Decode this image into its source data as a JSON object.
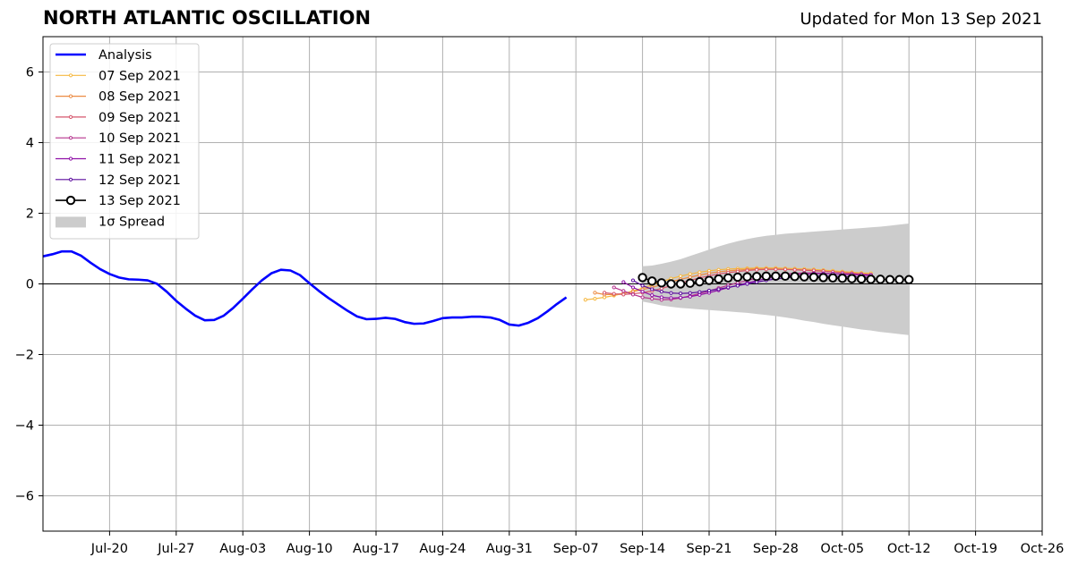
{
  "title": "NORTH ATLANTIC OSCILLATION",
  "subtitle": "Updated for Mon 13 Sep 2021",
  "chart_data": {
    "type": "line",
    "xlim": [
      "2021-07-13",
      "2021-10-26"
    ],
    "ylim": [
      -7,
      7
    ],
    "grid": true,
    "x_ticks": [
      "2021-07-20",
      "2021-07-27",
      "2021-08-03",
      "2021-08-10",
      "2021-08-17",
      "2021-08-24",
      "2021-08-31",
      "2021-09-07",
      "2021-09-14",
      "2021-09-21",
      "2021-09-28",
      "2021-10-05",
      "2021-10-12",
      "2021-10-19",
      "2021-10-26"
    ],
    "x_tick_labels": [
      "Jul-20",
      "Jul-27",
      "Aug-03",
      "Aug-10",
      "Aug-17",
      "Aug-24",
      "Aug-31",
      "Sep-07",
      "Sep-14",
      "Sep-21",
      "Sep-28",
      "Oct-05",
      "Oct-12",
      "Oct-19",
      "Oct-26"
    ],
    "y_ticks": [
      -6,
      -4,
      -2,
      0,
      2,
      4,
      6
    ],
    "y_tick_labels": [
      "−6",
      "−4",
      "−2",
      "0",
      "2",
      "4",
      "6"
    ],
    "legend_position": "upper-left",
    "legend": {
      "analysis": "Analysis",
      "spread": "1σ Spread"
    },
    "analysis": {
      "name": "Analysis",
      "color": "#0000ff",
      "start_date": "2021-07-13",
      "values": [
        0.78,
        0.84,
        0.92,
        0.92,
        0.8,
        0.6,
        0.42,
        0.28,
        0.18,
        0.13,
        0.12,
        0.1,
        0.0,
        -0.22,
        -0.48,
        -0.7,
        -0.9,
        -1.03,
        -1.02,
        -0.9,
        -0.68,
        -0.42,
        -0.15,
        0.1,
        0.3,
        0.4,
        0.38,
        0.25,
        0.02,
        -0.2,
        -0.4,
        -0.58,
        -0.76,
        -0.92,
        -1.0,
        -0.99,
        -0.96,
        -0.99,
        -1.08,
        -1.13,
        -1.12,
        -1.05,
        -0.97,
        -0.95,
        -0.95,
        -0.93,
        -0.93,
        -0.95,
        -1.02,
        -1.15,
        -1.18,
        -1.1,
        -0.97,
        -0.78,
        -0.57,
        -0.38
      ]
    },
    "spread": {
      "name": "1σ Spread",
      "color": "#cccccc",
      "start_date": "2021-09-14",
      "upper": [
        0.5,
        0.52,
        0.57,
        0.63,
        0.7,
        0.79,
        0.88,
        0.97,
        1.06,
        1.14,
        1.21,
        1.27,
        1.32,
        1.36,
        1.39,
        1.42,
        1.44,
        1.46,
        1.48,
        1.5,
        1.52,
        1.54,
        1.56,
        1.58,
        1.6,
        1.62,
        1.65,
        1.68,
        1.71
      ],
      "lower": [
        -0.5,
        -0.55,
        -0.61,
        -0.65,
        -0.68,
        -0.7,
        -0.72,
        -0.74,
        -0.76,
        -0.78,
        -0.8,
        -0.82,
        -0.85,
        -0.88,
        -0.91,
        -0.95,
        -0.99,
        -1.04,
        -1.08,
        -1.13,
        -1.17,
        -1.21,
        -1.25,
        -1.29,
        -1.32,
        -1.36,
        -1.39,
        -1.42,
        -1.45
      ]
    },
    "forecasts": [
      {
        "name": "07 Sep 2021",
        "color": "#f5b841",
        "start_date": "2021-09-08",
        "values": [
          -0.45,
          -0.42,
          -0.38,
          -0.33,
          -0.27,
          -0.2,
          -0.12,
          -0.03,
          0.06,
          0.15,
          0.22,
          0.28,
          0.33,
          0.37,
          0.4,
          0.42,
          0.43,
          0.44,
          0.45,
          0.45,
          0.45,
          0.44,
          0.43,
          0.42,
          0.41,
          0.39,
          0.37,
          0.35,
          0.33,
          0.31,
          0.3
        ]
      },
      {
        "name": "08 Sep 2021",
        "color": "#ec8b43",
        "start_date": "2021-09-09",
        "values": [
          -0.25,
          -0.3,
          -0.3,
          -0.27,
          -0.22,
          -0.16,
          -0.1,
          -0.02,
          0.06,
          0.13,
          0.19,
          0.25,
          0.3,
          0.34,
          0.37,
          0.39,
          0.41,
          0.42,
          0.42,
          0.42,
          0.41,
          0.4,
          0.39,
          0.37,
          0.36,
          0.34,
          0.32,
          0.3,
          0.28,
          0.26
        ]
      },
      {
        "name": "09 Sep 2021",
        "color": "#d6566c",
        "start_date": "2021-09-10",
        "values": [
          -0.25,
          -0.28,
          -0.3,
          -0.28,
          -0.25,
          -0.2,
          -0.13,
          -0.05,
          0.03,
          0.1,
          0.17,
          0.23,
          0.28,
          0.32,
          0.35,
          0.38,
          0.4,
          0.41,
          0.41,
          0.41,
          0.4,
          0.39,
          0.38,
          0.36,
          0.34,
          0.32,
          0.3,
          0.28,
          0.26
        ]
      },
      {
        "name": "10 Sep 2021",
        "color": "#b5338e",
        "start_date": "2021-09-11",
        "values": [
          -0.1,
          -0.2,
          -0.3,
          -0.38,
          -0.42,
          -0.45,
          -0.44,
          -0.4,
          -0.34,
          -0.27,
          -0.2,
          -0.12,
          -0.04,
          0.03,
          0.1,
          0.16,
          0.21,
          0.25,
          0.28,
          0.3,
          0.31,
          0.31,
          0.3,
          0.29,
          0.27,
          0.26,
          0.25,
          0.23
        ]
      },
      {
        "name": "11 Sep 2021",
        "color": "#8f12a8",
        "start_date": "2021-09-12",
        "values": [
          0.05,
          -0.1,
          -0.22,
          -0.32,
          -0.38,
          -0.4,
          -0.39,
          -0.36,
          -0.31,
          -0.25,
          -0.18,
          -0.11,
          -0.04,
          0.03,
          0.09,
          0.15,
          0.19,
          0.23,
          0.26,
          0.28,
          0.29,
          0.29,
          0.29,
          0.28,
          0.27,
          0.26,
          0.25
        ]
      },
      {
        "name": "12 Sep 2021",
        "color": "#5b0c9e",
        "start_date": "2021-09-13",
        "values": [
          0.1,
          -0.05,
          -0.15,
          -0.22,
          -0.26,
          -0.27,
          -0.26,
          -0.23,
          -0.19,
          -0.15,
          -0.1,
          -0.05,
          0.0,
          0.05,
          0.1,
          0.14,
          0.17,
          0.19,
          0.21,
          0.22,
          0.22,
          0.22,
          0.21,
          0.2,
          0.19,
          0.18
        ]
      },
      {
        "name": "13 Sep 2021",
        "color": "#000000",
        "start_date": "2021-09-14",
        "values": [
          0.18,
          0.08,
          0.03,
          0.0,
          0.0,
          0.02,
          0.06,
          0.1,
          0.14,
          0.17,
          0.19,
          0.2,
          0.21,
          0.22,
          0.22,
          0.22,
          0.21,
          0.2,
          0.19,
          0.18,
          0.17,
          0.16,
          0.15,
          0.14,
          0.13,
          0.13,
          0.12,
          0.12,
          0.12
        ]
      }
    ]
  }
}
